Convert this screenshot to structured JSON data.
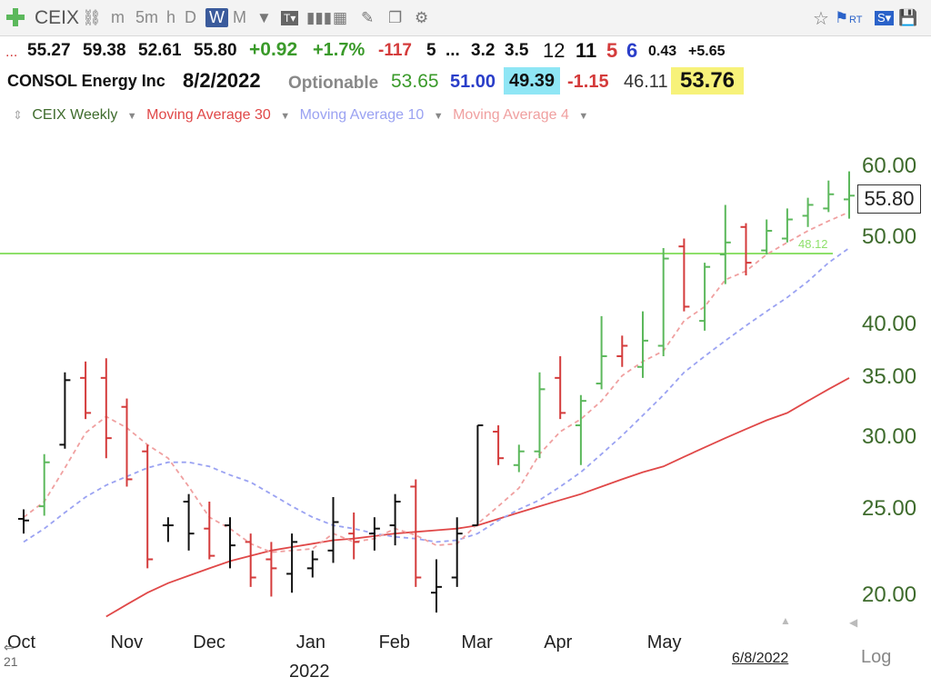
{
  "toolbar": {
    "symbol": "CEIX",
    "periods": [
      "m",
      "5m",
      "h",
      "D",
      "W",
      "M"
    ],
    "active_period": "W",
    "rt_label": "RT"
  },
  "quote_row": {
    "lead": "...",
    "open": "55.27",
    "high": "59.38",
    "low": "52.61",
    "close": "55.80",
    "change": "+0.92",
    "change_pct": "+1.7%",
    "v1": "-117",
    "v2": "5",
    "v3": "...",
    "v4": "3.2",
    "v5": "3.5",
    "v6": "12",
    "v7": "11",
    "v8": "5",
    "v9": "6",
    "v10": "0.43",
    "v11": "+5.65"
  },
  "info_row": {
    "company": "CONSOL Energy Inc",
    "date": "8/2/2022",
    "optionable": "Optionable",
    "f1": "53.65",
    "f2": "51.00",
    "f3": "49.39",
    "f4": "-1.15",
    "f5": "46.11",
    "f6": "53.76"
  },
  "legend": {
    "series_main": "CEIX Weekly",
    "ma30": "Moving Average 30",
    "ma10": "Moving Average 10",
    "ma4": "Moving Average 4"
  },
  "colors": {
    "up": "#5cb85c",
    "down": "#d43b3b",
    "neutral": "#111111",
    "ma30": "#e04848",
    "ma10": "#9aa2f2",
    "ma4": "#f0a0a0",
    "hline": "#8ee06a"
  },
  "last_price_box": "55.80",
  "date_label": "6/8/2022",
  "log_label": "Log",
  "year_label": "2022",
  "edge_label": "21",
  "chart_data": {
    "type": "bar",
    "scale": "log",
    "ylim": [
      18.5,
      62
    ],
    "y_ticks": [
      20,
      25,
      30,
      35,
      40,
      50,
      60
    ],
    "y_tick_labels": [
      "20.00",
      "25.00",
      "30.00",
      "35.00",
      "40.00",
      "50.00",
      "60.00"
    ],
    "x_labels": [
      "Oct",
      "Nov",
      "Dec",
      "Jan",
      "Feb",
      "Mar",
      "Apr",
      "May"
    ],
    "horizontal_line": {
      "value": 48.12,
      "label": "48.12"
    },
    "ohlc": [
      {
        "o": 24.4,
        "h": 25.0,
        "l": 23.5,
        "c": 24.3,
        "dir": "flat"
      },
      {
        "o": 25.2,
        "h": 28.8,
        "l": 24.6,
        "c": 28.2,
        "dir": "up"
      },
      {
        "o": 29.5,
        "h": 35.5,
        "l": 29.2,
        "c": 34.8,
        "dir": "flat"
      },
      {
        "o": 35.0,
        "h": 36.5,
        "l": 31.5,
        "c": 32.0,
        "dir": "down"
      },
      {
        "o": 35.0,
        "h": 36.8,
        "l": 28.5,
        "c": 30.0,
        "dir": "down"
      },
      {
        "o": 32.5,
        "h": 33.2,
        "l": 26.5,
        "c": 27.0,
        "dir": "down"
      },
      {
        "o": 29.0,
        "h": 29.5,
        "l": 21.5,
        "c": 22.0,
        "dir": "down"
      },
      {
        "o": 24.0,
        "h": 24.5,
        "l": 23.0,
        "c": 24.0,
        "dir": "flat"
      },
      {
        "o": 25.5,
        "h": 26.0,
        "l": 22.5,
        "c": 23.5,
        "dir": "flat"
      },
      {
        "o": 23.8,
        "h": 25.5,
        "l": 22.0,
        "c": 22.2,
        "dir": "down"
      },
      {
        "o": 24.0,
        "h": 24.5,
        "l": 21.5,
        "c": 22.8,
        "dir": "flat"
      },
      {
        "o": 23.0,
        "h": 23.5,
        "l": 20.5,
        "c": 21.0,
        "dir": "down"
      },
      {
        "o": 22.0,
        "h": 23.0,
        "l": 20.0,
        "c": 21.5,
        "dir": "down"
      },
      {
        "o": 21.2,
        "h": 23.5,
        "l": 20.2,
        "c": 23.0,
        "dir": "flat"
      },
      {
        "o": 21.5,
        "h": 22.5,
        "l": 21.0,
        "c": 22.0,
        "dir": "flat"
      },
      {
        "o": 22.5,
        "h": 25.8,
        "l": 21.8,
        "c": 24.2,
        "dir": "flat"
      },
      {
        "o": 23.5,
        "h": 24.8,
        "l": 22.0,
        "c": 23.0,
        "dir": "down"
      },
      {
        "o": 23.5,
        "h": 24.5,
        "l": 22.5,
        "c": 23.8,
        "dir": "flat"
      },
      {
        "o": 24.0,
        "h": 26.0,
        "l": 22.8,
        "c": 25.5,
        "dir": "flat"
      },
      {
        "o": 26.5,
        "h": 27.0,
        "l": 20.5,
        "c": 21.0,
        "dir": "down"
      },
      {
        "o": 20.2,
        "h": 22.0,
        "l": 19.2,
        "c": 20.5,
        "dir": "flat"
      },
      {
        "o": 21.0,
        "h": 24.5,
        "l": 20.5,
        "c": 23.5,
        "dir": "flat"
      },
      {
        "o": 24.0,
        "h": 31.0,
        "l": 24.0,
        "c": 31.0,
        "dir": "flat"
      },
      {
        "o": 30.5,
        "h": 31.0,
        "l": 28.0,
        "c": 28.5,
        "dir": "down"
      },
      {
        "o": 28.0,
        "h": 29.5,
        "l": 27.5,
        "c": 29.0,
        "dir": "up"
      },
      {
        "o": 29.0,
        "h": 35.5,
        "l": 28.5,
        "c": 34.0,
        "dir": "up"
      },
      {
        "o": 35.0,
        "h": 37.0,
        "l": 31.5,
        "c": 32.0,
        "dir": "down"
      },
      {
        "o": 31.0,
        "h": 33.5,
        "l": 28.0,
        "c": 33.0,
        "dir": "up"
      },
      {
        "o": 34.5,
        "h": 41.0,
        "l": 34.0,
        "c": 37.0,
        "dir": "up"
      },
      {
        "o": 37.0,
        "h": 39.0,
        "l": 36.0,
        "c": 38.0,
        "dir": "down"
      },
      {
        "o": 36.0,
        "h": 41.5,
        "l": 35.0,
        "c": 38.5,
        "dir": "up"
      },
      {
        "o": 38.0,
        "h": 48.8,
        "l": 37.0,
        "c": 47.5,
        "dir": "up"
      },
      {
        "o": 49.0,
        "h": 50.0,
        "l": 41.5,
        "c": 42.0,
        "dir": "down"
      },
      {
        "o": 40.5,
        "h": 47.0,
        "l": 39.5,
        "c": 46.5,
        "dir": "up"
      },
      {
        "o": 48.0,
        "h": 54.5,
        "l": 44.5,
        "c": 49.5,
        "dir": "up"
      },
      {
        "o": 51.5,
        "h": 52.0,
        "l": 45.5,
        "c": 47.0,
        "dir": "down"
      },
      {
        "o": 48.5,
        "h": 52.5,
        "l": 48.0,
        "c": 51.0,
        "dir": "up"
      },
      {
        "o": 50.0,
        "h": 54.0,
        "l": 49.5,
        "c": 52.5,
        "dir": "up"
      },
      {
        "o": 53.0,
        "h": 55.5,
        "l": 51.5,
        "c": 54.5,
        "dir": "up"
      },
      {
        "o": 54.0,
        "h": 58.0,
        "l": 53.5,
        "c": 56.0,
        "dir": "up"
      },
      {
        "o": 55.27,
        "h": 59.38,
        "l": 52.61,
        "c": 55.8,
        "dir": "up"
      }
    ],
    "ma4": [
      24.5,
      25.5,
      27.8,
      30.4,
      31.7,
      30.8,
      29.5,
      28.5,
      26.5,
      24.5,
      23.8,
      22.9,
      22.4,
      22.5,
      22.6,
      23.5,
      23.0,
      23.2,
      23.8,
      23.4,
      22.8,
      22.9,
      24.1,
      25.2,
      26.4,
      28.8,
      30.5,
      31.5,
      33.0,
      35.2,
      36.5,
      37.5,
      40.5,
      42.0,
      45.0,
      46.0,
      48.0,
      49.5,
      51.0,
      52.3,
      53.5
    ],
    "ma10": [
      23.0,
      23.8,
      24.8,
      25.8,
      26.6,
      27.2,
      27.8,
      28.2,
      28.2,
      27.9,
      27.3,
      26.8,
      26.0,
      25.2,
      24.5,
      24.0,
      23.8,
      23.5,
      23.3,
      23.2,
      23.0,
      23.1,
      23.5,
      24.3,
      25.0,
      25.6,
      26.5,
      27.5,
      28.8,
      30.2,
      31.8,
      33.5,
      35.5,
      37.0,
      38.5,
      40.0,
      41.5,
      43.0,
      44.8,
      47.0,
      48.8
    ],
    "ma30": [
      null,
      null,
      null,
      null,
      19.0,
      19.6,
      20.2,
      20.7,
      21.1,
      21.5,
      21.9,
      22.2,
      22.5,
      22.7,
      22.9,
      23.1,
      23.2,
      23.35,
      23.5,
      23.6,
      23.7,
      23.8,
      24.0,
      24.4,
      24.8,
      25.2,
      25.6,
      26.0,
      26.5,
      27.0,
      27.5,
      27.9,
      28.6,
      29.3,
      30.0,
      30.7,
      31.4,
      32.0,
      33.0,
      34.0,
      35.0
    ]
  }
}
